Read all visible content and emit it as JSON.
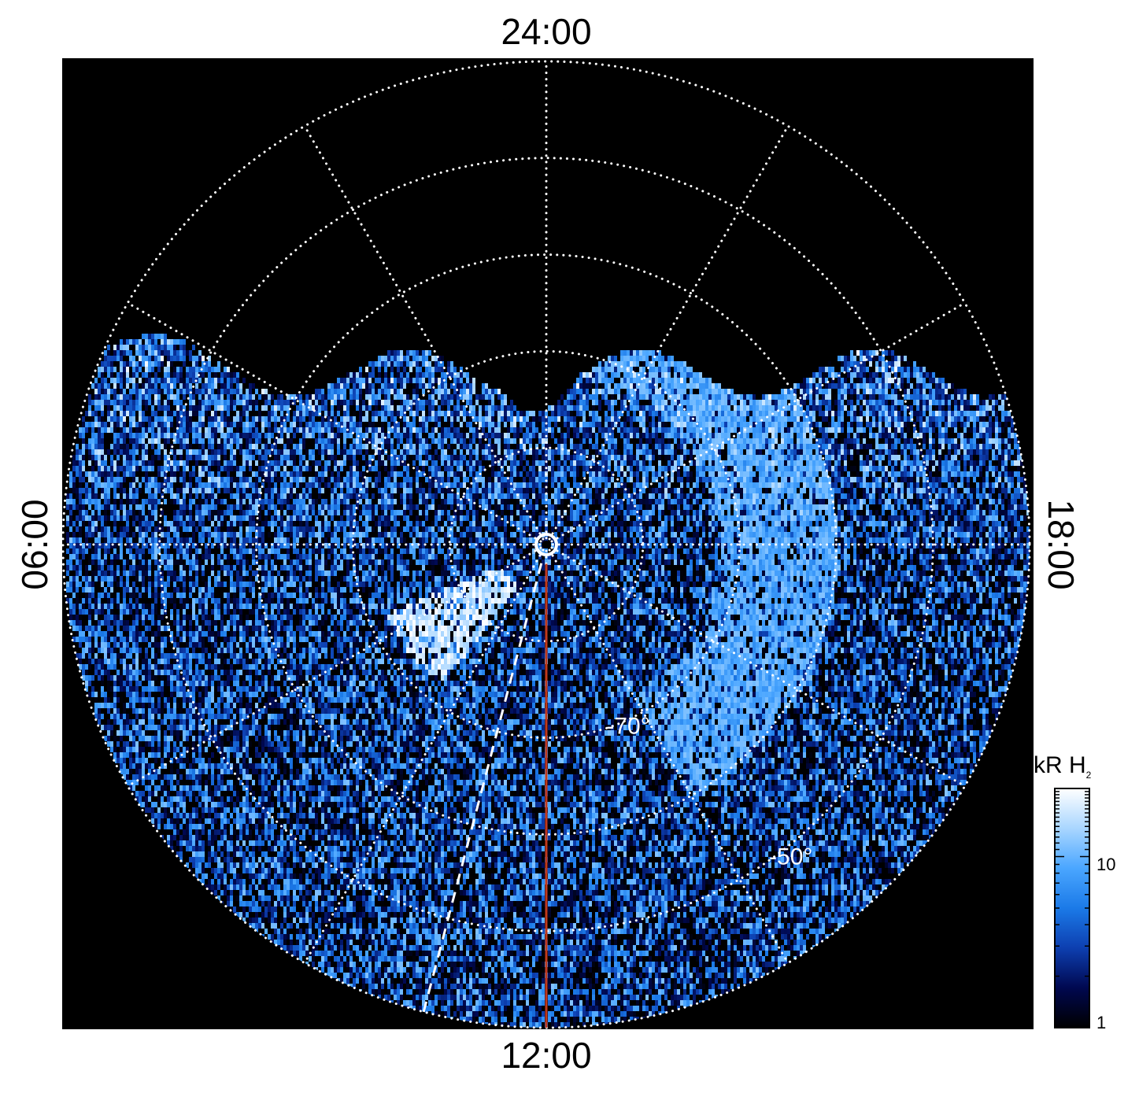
{
  "chart_data": {
    "type": "heatmap",
    "title": "",
    "projection": "polar",
    "background": "#000000",
    "local_time_labels": {
      "top": "24:00",
      "bottom": "12:00",
      "left": "06:00",
      "right": "18:00"
    },
    "latitude_labels": [
      "-70°",
      "-50°"
    ],
    "latitude_grid_deg": [
      -90,
      -80,
      -70,
      -60,
      -50,
      -40
    ],
    "local_time_grid_hours": [
      0,
      2,
      4,
      6,
      8,
      10,
      12,
      14,
      16,
      18,
      20,
      22
    ],
    "grid": true,
    "grid_color": "#ffffff",
    "reference_line": {
      "local_time": "12:00",
      "color": "#c0391b"
    },
    "dashed_line": {
      "local_time": "~11:00",
      "color": "#ffffff"
    },
    "pole_marker": "circle",
    "colorbar": {
      "label": "kR H",
      "label_sub": "2",
      "scale": "log",
      "range": [
        1,
        25
      ],
      "ticks": [
        "10",
        "1"
      ],
      "tick_values": [
        10,
        1
      ],
      "placement": "bottom-right",
      "colors": [
        "#000000",
        "#000850",
        "#0d3fb0",
        "#1b7ae8",
        "#4aa6ff",
        "#a9d6ff",
        "#ffffff"
      ]
    },
    "features": [
      {
        "name": "bright arc",
        "local_time_hours": [
          7.5,
          9.5
        ],
        "latitude_deg": [
          -85,
          -72
        ],
        "intensity_kR": 25
      },
      {
        "name": "dayside band",
        "local_time_hours": [
          14,
          23
        ],
        "latitude_deg": [
          -72,
          -60
        ],
        "intensity_kR": 12
      }
    ]
  }
}
